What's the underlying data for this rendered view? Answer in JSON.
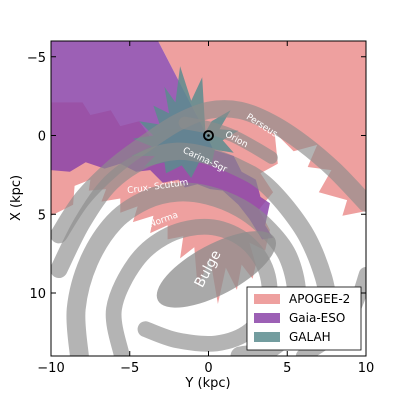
{
  "chart_data": {
    "type": "area",
    "title": "",
    "xlabel": "Y (kpc)",
    "ylabel": "X (kpc)",
    "xlim": [
      -10,
      10
    ],
    "ylim": [
      14,
      -6
    ],
    "y_inverted": true,
    "xticks": [
      -10,
      -5,
      0,
      5,
      10
    ],
    "xtick_labels": [
      "−10",
      "−5",
      "0",
      "5",
      "10"
    ],
    "yticks": [
      -5,
      0,
      5,
      10
    ],
    "ytick_labels": [
      "−5",
      "0",
      "5",
      "10"
    ],
    "grid": false,
    "legend_position": "bottom-right",
    "sun_position": {
      "y": 0,
      "x": 0
    },
    "series": [
      {
        "name": "APOGEE-2",
        "color": "#e8807f",
        "opacity": 0.75
      },
      {
        "name": "Gaia-ESO",
        "color": "#8b44a8",
        "opacity": 0.85
      },
      {
        "name": "GALAH",
        "color": "#5a8c8e",
        "opacity": 0.85
      }
    ],
    "arm_labels": [
      {
        "text": "Perseus",
        "y": 3.3,
        "x": -0.5,
        "angle": 33
      },
      {
        "text": "Orion",
        "y": 1.7,
        "x": 0.4,
        "angle": 28
      },
      {
        "text": "Carina-Sgr",
        "y": -0.3,
        "x": 1.7,
        "angle": 25
      },
      {
        "text": "Crux- Scutum",
        "y": -3.2,
        "x": 3.4,
        "angle": -8
      },
      {
        "text": "Norma",
        "y": -2.8,
        "x": 5.5,
        "angle": -20
      }
    ],
    "bulge_label": {
      "text": "Bulge",
      "y": 0.2,
      "x": 8.6,
      "angle": -62
    },
    "arms": [
      {
        "name": "Perseus",
        "points": [
          [
            -9.5,
            6.3
          ],
          [
            -8,
            4
          ],
          [
            -6,
            2
          ],
          [
            -4,
            0.5
          ],
          [
            -2,
            -0.8
          ],
          [
            0,
            -1.6
          ],
          [
            2,
            -1.6
          ],
          [
            4,
            -0.8
          ],
          [
            6,
            0.5
          ],
          [
            8,
            2.2
          ],
          [
            10,
            4.3
          ]
        ],
        "width": 1.1,
        "color": "#8c8c8c",
        "opacity": 0.65
      },
      {
        "name": "Orion",
        "points": [
          [
            -1.5,
            -0.8
          ],
          [
            0,
            -0.5
          ],
          [
            1.5,
            0
          ],
          [
            3,
            0.8
          ],
          [
            4,
            1.4
          ]
        ],
        "width": 0.8,
        "color": "#8c8c8c",
        "opacity": 0.65
      },
      {
        "name": "Carina-Sgr",
        "points": [
          [
            -9.5,
            8.5
          ],
          [
            -8,
            5.5
          ],
          [
            -6.2,
            3
          ],
          [
            -4,
            1.5
          ],
          [
            -2,
            1
          ],
          [
            0,
            1.3
          ],
          [
            2,
            2.1
          ],
          [
            3.5,
            3
          ],
          [
            5,
            4.6
          ],
          [
            6.3,
            6.5
          ],
          [
            7.3,
            9
          ],
          [
            7.8,
            11.5
          ]
        ],
        "width": 1.1,
        "color": "#8c8c8c",
        "opacity": 0.65
      },
      {
        "name": "Crux-Scutum",
        "points": [
          [
            -8.2,
            14
          ],
          [
            -8.4,
            11
          ],
          [
            -7.6,
            8
          ],
          [
            -6,
            5.5
          ],
          [
            -4,
            4.1
          ],
          [
            -2,
            3.6
          ],
          [
            0,
            3.8
          ],
          [
            2,
            4.6
          ],
          [
            3.6,
            5.8
          ],
          [
            5,
            7.6
          ],
          [
            5.6,
            10
          ],
          [
            5.2,
            12.2
          ],
          [
            3.8,
            13.6
          ],
          [
            2,
            14
          ]
        ],
        "width": 1.2,
        "color": "#8c8c8c",
        "opacity": 0.65
      },
      {
        "name": "Norma",
        "points": [
          [
            -5.5,
            14
          ],
          [
            -6,
            11
          ],
          [
            -4.6,
            8
          ],
          [
            -2.5,
            6.3
          ],
          [
            0,
            5.8
          ],
          [
            2.2,
            6.6
          ],
          [
            3.6,
            8.4
          ],
          [
            3.8,
            10.6
          ],
          [
            2.6,
            12.4
          ],
          [
            0.5,
            13.2
          ],
          [
            -2,
            13
          ],
          [
            -4,
            12.3
          ]
        ],
        "width": 1.0,
        "color": "#8c8c8c",
        "opacity": 0.65
      },
      {
        "name": "Outer",
        "points": [
          [
            10,
            8.8
          ],
          [
            9.2,
            11
          ],
          [
            7.8,
            12.8
          ],
          [
            6,
            14
          ]
        ],
        "width": 0.9,
        "color": "#8c8c8c",
        "opacity": 0.65
      }
    ],
    "bulge": {
      "y": 0.5,
      "x": 8.5,
      "ry": 1.6,
      "rx": 4.2,
      "angle": 62,
      "color": "#8c8c8c",
      "opacity": 0.75
    },
    "regions": {
      "apogee": [
        [
          -3.2,
          -6
        ],
        [
          10,
          -6
        ],
        [
          10,
          4.8
        ],
        [
          8.5,
          5.1
        ],
        [
          8.8,
          4.1
        ],
        [
          7,
          3.6
        ],
        [
          7.8,
          2.2
        ],
        [
          6.3,
          2
        ],
        [
          6.9,
          0.6
        ],
        [
          5.4,
          1
        ],
        [
          4.2,
          -0.2
        ],
        [
          4.4,
          1.8
        ],
        [
          3.3,
          2.4
        ],
        [
          4.1,
          3.6
        ],
        [
          3.2,
          4.7
        ],
        [
          3.9,
          6
        ],
        [
          3.6,
          7.3
        ],
        [
          2.6,
          6.8
        ],
        [
          3,
          8.2
        ],
        [
          2.8,
          9.1
        ],
        [
          2.1,
          8.2
        ],
        [
          1.8,
          9.8
        ],
        [
          1.1,
          8.4
        ],
        [
          0.6,
          10.7
        ],
        [
          0.1,
          7.8
        ],
        [
          -0.7,
          9.6
        ],
        [
          -0.9,
          7.1
        ],
        [
          -1.8,
          7.8
        ],
        [
          -1.6,
          6.4
        ],
        [
          -2.6,
          6.6
        ],
        [
          -2.6,
          5.7
        ],
        [
          -3.7,
          6.2
        ],
        [
          -3.5,
          5.1
        ],
        [
          -4.8,
          5.5
        ],
        [
          -4.5,
          4.5
        ],
        [
          -5.6,
          4.9
        ],
        [
          -5.6,
          4
        ],
        [
          -6.8,
          4.2
        ],
        [
          -6.5,
          3.4
        ],
        [
          -7.6,
          3.5
        ],
        [
          -7.5,
          2.8
        ],
        [
          -8.5,
          3.2
        ],
        [
          -8.6,
          4.4
        ],
        [
          -10,
          5.1
        ],
        [
          -10,
          -2.1
        ],
        [
          -8,
          -2.1
        ],
        [
          -7.5,
          -1.3
        ],
        [
          -6.2,
          -1.6
        ],
        [
          -5.6,
          -0.6
        ],
        [
          -4.4,
          -0.9
        ],
        [
          -3.7,
          0.1
        ],
        [
          -2.7,
          -0.4
        ],
        [
          -1.6,
          -0.4
        ],
        [
          -0.2,
          -0.2
        ]
      ],
      "gaia_eso": [
        [
          -10,
          -6
        ],
        [
          -3.2,
          -6
        ],
        [
          -0.2,
          -0.2
        ],
        [
          0.3,
          0.9
        ],
        [
          1.6,
          1.3
        ],
        [
          2.1,
          2.3
        ],
        [
          3,
          2.8
        ],
        [
          3.3,
          3.9
        ],
        [
          3.9,
          4.3
        ],
        [
          3.6,
          5.7
        ],
        [
          4.1,
          6.5
        ],
        [
          3.4,
          6.6
        ],
        [
          2.6,
          5.3
        ],
        [
          1.9,
          4.4
        ],
        [
          0.9,
          3.5
        ],
        [
          0.1,
          3.4
        ],
        [
          -0.7,
          3.1
        ],
        [
          -1.5,
          3.3
        ],
        [
          -1.9,
          2.8
        ],
        [
          -2.9,
          3
        ],
        [
          -3.7,
          2.2
        ],
        [
          -4.6,
          2.3
        ],
        [
          -5.6,
          1.8
        ],
        [
          -6.6,
          2.1
        ],
        [
          -7.8,
          1.7
        ],
        [
          -8.8,
          2.3
        ],
        [
          -10,
          2.2
        ]
      ],
      "galah": [
        [
          -0.2,
          -0.2
        ],
        [
          -0.4,
          -3.7
        ],
        [
          -1.1,
          -2.2
        ],
        [
          -1.8,
          -4.4
        ],
        [
          -2.1,
          -2.1
        ],
        [
          -2.8,
          -3.1
        ],
        [
          -2.5,
          -1.4
        ],
        [
          -3.5,
          -1.9
        ],
        [
          -3.1,
          -0.7
        ],
        [
          -4.4,
          -0.9
        ],
        [
          -3.5,
          0
        ],
        [
          -4.8,
          0.2
        ],
        [
          -3.6,
          0.7
        ],
        [
          -4.9,
          1.3
        ],
        [
          -3.4,
          1.3
        ],
        [
          -4.1,
          2
        ],
        [
          -2.8,
          1.7
        ],
        [
          -2.7,
          2.4
        ],
        [
          -1.7,
          1.9
        ],
        [
          -1.1,
          2.7
        ],
        [
          -0.6,
          1.7
        ],
        [
          0.2,
          1.8
        ],
        [
          0.4,
          0.9
        ],
        [
          1.6,
          1.1
        ],
        [
          0.9,
          0.3
        ],
        [
          1.9,
          -0.3
        ],
        [
          0.7,
          -0.4
        ],
        [
          1.4,
          -1.6
        ],
        [
          0.2,
          -0.9
        ]
      ]
    }
  }
}
